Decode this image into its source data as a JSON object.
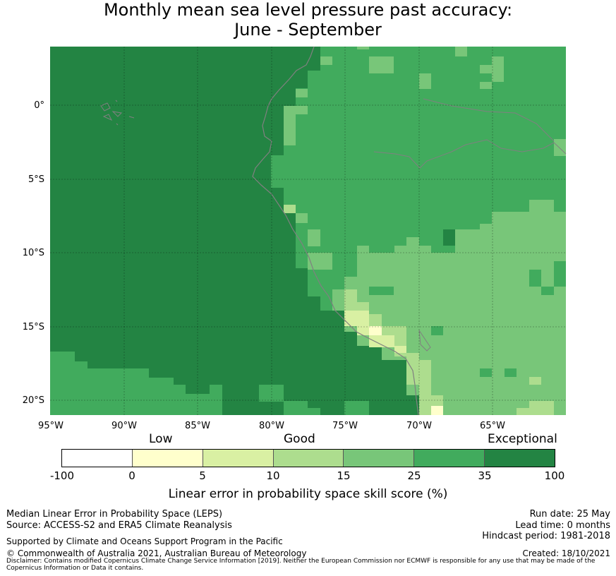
{
  "title": {
    "line1": "Monthly mean sea level pressure past accuracy:",
    "line2": "June - September"
  },
  "map": {
    "lon_range": [
      -95,
      -60
    ],
    "lat_range": [
      -21,
      4
    ],
    "lat_ticks": [
      "0°",
      "5°S",
      "10°S",
      "15°S",
      "20°S"
    ],
    "lon_ticks": [
      "95°W",
      "90°W",
      "85°W",
      "80°W",
      "75°W",
      "70°W",
      "65°W"
    ],
    "gridlines": true
  },
  "colorbar": {
    "categories": {
      "low": "Low",
      "good": "Good",
      "exceptional": "Exceptional"
    },
    "ticks": [
      "-100",
      "0",
      "5",
      "10",
      "15",
      "25",
      "35",
      "100"
    ],
    "colors": [
      "#ffffff",
      "#ffffcc",
      "#d9f0a3",
      "#addd8e",
      "#78c679",
      "#41ab5d",
      "#238443"
    ],
    "label": "Linear error in probability space skill score (%)"
  },
  "footer": {
    "metric": "Median Linear Error in Probability Space (LEPS)",
    "source": "Source: ACCESS-S2 and ERA5 Climate Reanalysis",
    "support": "Supported by Climate and Oceans Support Program in the Pacific",
    "copyright": "© Commonwealth of Australia 2021, Australian Bureau of Meteorology",
    "run_date": "Run date: 25 May",
    "lead_time": "Lead time: 0 months",
    "hindcast": "Hindcast period: 1981-2018",
    "created": "Created: 18/10/2021",
    "disclaimer": "Disclaimer: Contains modified Copernicus Climate Change Service Information [2019]. Neither the European Commission nor ECMWF is responsible for any use that may be made of the Copernicus Information or Data it contains."
  }
}
